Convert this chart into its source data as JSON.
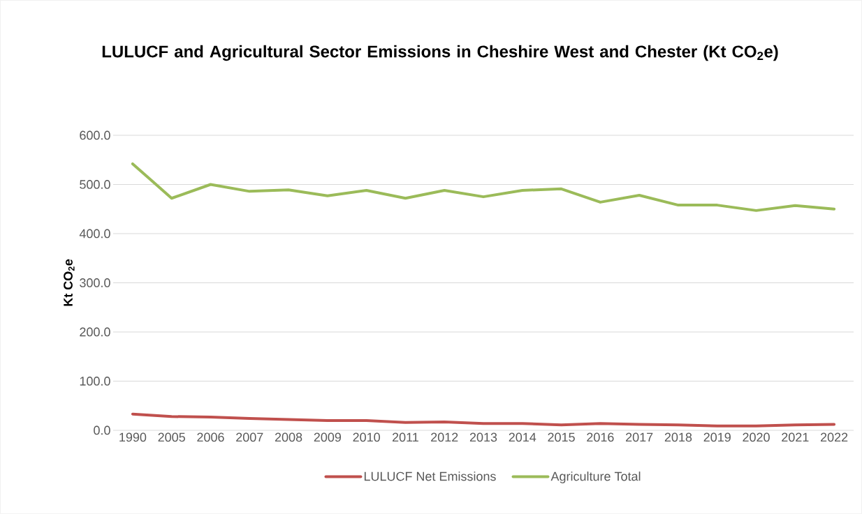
{
  "chart_data": {
    "type": "line",
    "title": "LULUCF and Agricultural Sector Emissions in Cheshire West and Chester (Kt CO$_{2}$e)",
    "ylabel": "Kt CO$_{2}$e",
    "categories": [
      "1990",
      "2005",
      "2006",
      "2007",
      "2008",
      "2009",
      "2010",
      "2011",
      "2012",
      "2013",
      "2014",
      "2015",
      "2016",
      "2017",
      "2018",
      "2019",
      "2020",
      "2021",
      "2022"
    ],
    "series": [
      {
        "name": "LULUCF Net Emissions",
        "color": "#c0504d",
        "values": [
          33,
          28,
          27,
          24,
          22,
          20,
          20,
          16,
          17,
          14,
          14,
          11,
          14,
          12,
          11,
          9,
          9,
          11,
          12
        ]
      },
      {
        "name": "Agriculture Total",
        "color": "#9bbb59",
        "values": [
          542,
          472,
          500,
          486,
          489,
          477,
          488,
          472,
          488,
          475,
          488,
          491,
          464,
          478,
          458,
          458,
          447,
          457,
          450
        ]
      }
    ],
    "ylim": [
      0,
      600
    ],
    "yticks": [
      {
        "value": 0,
        "label": "0.0"
      },
      {
        "value": 100,
        "label": "100.0"
      },
      {
        "value": 200,
        "label": "200.0"
      },
      {
        "value": 300,
        "label": "300.0"
      },
      {
        "value": 400,
        "label": "400.0"
      },
      {
        "value": 500,
        "label": "500.0"
      },
      {
        "value": 600,
        "label": "600.0"
      }
    ],
    "grid": "y",
    "legend": "bottom",
    "marker": "none",
    "line_style": "solid"
  }
}
